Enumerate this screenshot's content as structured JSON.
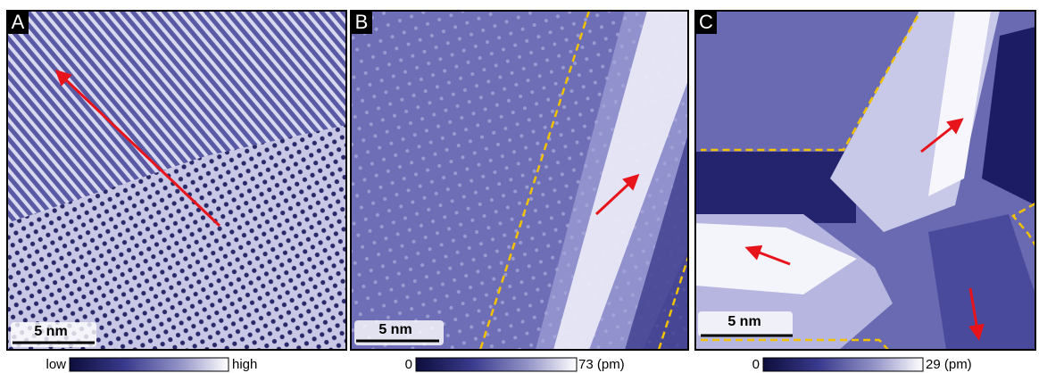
{
  "panels": [
    {
      "label": "A",
      "scale_bar": "5 nm",
      "colorbar": {
        "min_label": "low",
        "max_label": "high"
      }
    },
    {
      "label": "B",
      "scale_bar": "5 nm",
      "colorbar": {
        "min_label": "0",
        "max_label": "73 (pm)"
      }
    },
    {
      "label": "C",
      "scale_bar": "5 nm",
      "colorbar": {
        "min_label": "0",
        "max_label": "29 (pm)"
      }
    }
  ]
}
